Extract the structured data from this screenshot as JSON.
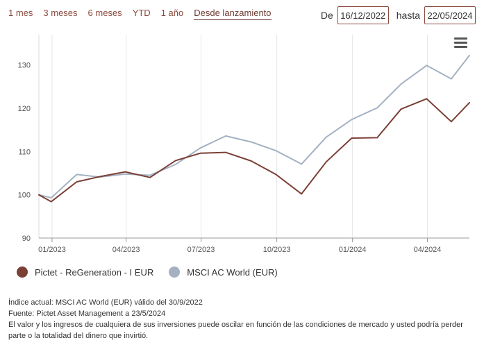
{
  "range_tabs": [
    "1 mes",
    "3 meses",
    "6 meses",
    "YTD",
    "1 año",
    "Desde lanzamiento"
  ],
  "active_tab": 5,
  "date_range": {
    "from_label": "De",
    "from_value": "16/12/2022",
    "to_label": "hasta",
    "to_value": "22/05/2024"
  },
  "menu_icon": "hamburger-menu-icon",
  "chart_data": {
    "type": "line",
    "x_tick_labels": [
      "01/2023",
      "04/2023",
      "07/2023",
      "10/2023",
      "01/2024",
      "04/2024"
    ],
    "x_tick_dates": [
      "2023-01-01",
      "2023-04-01",
      "2023-07-01",
      "2023-10-01",
      "2024-01-01",
      "2024-04-01"
    ],
    "xlim": [
      "2022-12-16",
      "2024-05-22"
    ],
    "ylim": [
      90,
      137
    ],
    "y_ticks": [
      90,
      100,
      110,
      120,
      130
    ],
    "grid": "vertical",
    "legend_position": "bottom-left",
    "x": [
      "2022-12-16",
      "2022-12-31",
      "2023-01-31",
      "2023-02-28",
      "2023-03-31",
      "2023-04-30",
      "2023-05-31",
      "2023-06-30",
      "2023-07-31",
      "2023-08-31",
      "2023-09-30",
      "2023-10-31",
      "2023-11-30",
      "2023-12-31",
      "2024-01-31",
      "2024-02-29",
      "2024-03-31",
      "2024-04-30",
      "2024-05-22"
    ],
    "series": [
      {
        "name": "Pictet - ReGeneration - I EUR",
        "color": "#7b3f35",
        "values": [
          100.0,
          98.4,
          103.0,
          104.2,
          105.3,
          104.0,
          107.9,
          109.6,
          109.8,
          107.8,
          104.7,
          100.2,
          107.6,
          113.1,
          113.2,
          119.8,
          122.2,
          116.9,
          121.3
        ]
      },
      {
        "name": "MSCI AC World (EUR)",
        "color": "#a3b1c3",
        "values": [
          100.0,
          99.3,
          104.7,
          104.1,
          104.8,
          104.5,
          107.0,
          110.8,
          113.6,
          112.2,
          110.2,
          107.1,
          113.3,
          117.4,
          120.1,
          125.6,
          129.9,
          126.8,
          132.2
        ]
      }
    ]
  },
  "footnotes": [
    "Índice actual: MSCI AC World (EUR) válido del 30/9/2022",
    "Fuente: Pictet Asset Management a 23/5/2024",
    "El valor y los ingresos de cualquiera de sus inversiones puede oscilar en función de las condiciones de mercado y usted podría perder parte o la totalidad del dinero que invirtió."
  ]
}
